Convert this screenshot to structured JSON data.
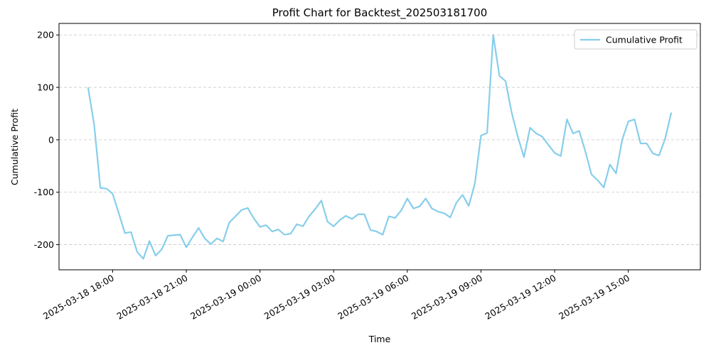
{
  "chart_data": {
    "type": "line",
    "title": "Profit Chart for Backtest_202503181700",
    "x_label": "Time",
    "y_label": "Cumulative Profit",
    "x": [
      "2025-03-18 17:00",
      "2025-03-18 17:15",
      "2025-03-18 17:30",
      "2025-03-18 17:45",
      "2025-03-18 18:00",
      "2025-03-18 18:15",
      "2025-03-18 18:30",
      "2025-03-18 18:45",
      "2025-03-18 19:00",
      "2025-03-18 19:15",
      "2025-03-18 19:30",
      "2025-03-18 19:45",
      "2025-03-18 20:00",
      "2025-03-18 20:15",
      "2025-03-18 20:30",
      "2025-03-18 20:45",
      "2025-03-18 21:00",
      "2025-03-18 21:15",
      "2025-03-18 21:30",
      "2025-03-18 21:45",
      "2025-03-18 22:00",
      "2025-03-18 22:15",
      "2025-03-18 22:30",
      "2025-03-18 22:45",
      "2025-03-18 23:00",
      "2025-03-18 23:15",
      "2025-03-18 23:30",
      "2025-03-18 23:45",
      "2025-03-19 00:00",
      "2025-03-19 00:15",
      "2025-03-19 00:30",
      "2025-03-19 00:45",
      "2025-03-19 01:00",
      "2025-03-19 01:15",
      "2025-03-19 01:30",
      "2025-03-19 01:45",
      "2025-03-19 02:00",
      "2025-03-19 02:15",
      "2025-03-19 02:30",
      "2025-03-19 02:45",
      "2025-03-19 03:00",
      "2025-03-19 03:15",
      "2025-03-19 03:30",
      "2025-03-19 03:45",
      "2025-03-19 04:00",
      "2025-03-19 04:15",
      "2025-03-19 04:30",
      "2025-03-19 04:45",
      "2025-03-19 05:00",
      "2025-03-19 05:15",
      "2025-03-19 05:30",
      "2025-03-19 05:45",
      "2025-03-19 06:00",
      "2025-03-19 06:15",
      "2025-03-19 06:30",
      "2025-03-19 06:45",
      "2025-03-19 07:00",
      "2025-03-19 07:15",
      "2025-03-19 07:30",
      "2025-03-19 07:45",
      "2025-03-19 08:00",
      "2025-03-19 08:15",
      "2025-03-19 08:30",
      "2025-03-19 08:45",
      "2025-03-19 09:00",
      "2025-03-19 09:15",
      "2025-03-19 09:30",
      "2025-03-19 09:45",
      "2025-03-19 10:00",
      "2025-03-19 10:15",
      "2025-03-19 10:30",
      "2025-03-19 10:45",
      "2025-03-19 11:00",
      "2025-03-19 11:15",
      "2025-03-19 11:30",
      "2025-03-19 11:45",
      "2025-03-19 12:00",
      "2025-03-19 12:15",
      "2025-03-19 12:30",
      "2025-03-19 12:45",
      "2025-03-19 13:00",
      "2025-03-19 13:15",
      "2025-03-19 13:30",
      "2025-03-19 13:45",
      "2025-03-19 14:00",
      "2025-03-19 14:15",
      "2025-03-19 14:30",
      "2025-03-19 14:45",
      "2025-03-19 15:00",
      "2025-03-19 15:15",
      "2025-03-19 15:30",
      "2025-03-19 15:45",
      "2025-03-19 16:00",
      "2025-03-19 16:15",
      "2025-03-19 16:30",
      "2025-03-19 16:45"
    ],
    "series": [
      {
        "name": "Cumulative Profit",
        "color": "#87ceeb",
        "values": [
          100,
          28,
          -92,
          -93,
          -103,
          -140,
          -178,
          -176,
          -214,
          -227,
          -193,
          -221,
          -209,
          -183,
          -182,
          -181,
          -205,
          -186,
          -168,
          -188,
          -199,
          -188,
          -194,
          -158,
          -146,
          -134,
          -130,
          -150,
          -166,
          -163,
          -175,
          -171,
          -181,
          -179,
          -161,
          -165,
          -146,
          -132,
          -116,
          -156,
          -165,
          -153,
          -145,
          -151,
          -142,
          -142,
          -172,
          -175,
          -181,
          -146,
          -149,
          -135,
          -112,
          -131,
          -127,
          -112,
          -131,
          -137,
          -140,
          -148,
          -120,
          -105,
          -126,
          -84,
          8,
          13,
          200,
          122,
          112,
          52,
          6,
          -33,
          23,
          12,
          6,
          -10,
          -25,
          -31,
          39,
          12,
          17,
          -22,
          -66,
          -77,
          -91,
          -47,
          -64,
          0,
          35,
          39,
          -7,
          -7,
          -26,
          -30,
          2,
          52
        ]
      }
    ],
    "xlim": [
      "2025-03-18 15:49",
      "2025-03-19 17:56"
    ],
    "xticks": [
      "2025-03-18 18:00",
      "2025-03-18 21:00",
      "2025-03-19 00:00",
      "2025-03-19 03:00",
      "2025-03-19 06:00",
      "2025-03-19 09:00",
      "2025-03-19 12:00",
      "2025-03-19 15:00"
    ],
    "ylim": [
      -248,
      222
    ],
    "yticks": [
      -200,
      -100,
      0,
      100,
      200
    ],
    "grid": true,
    "legend": "upper right"
  }
}
